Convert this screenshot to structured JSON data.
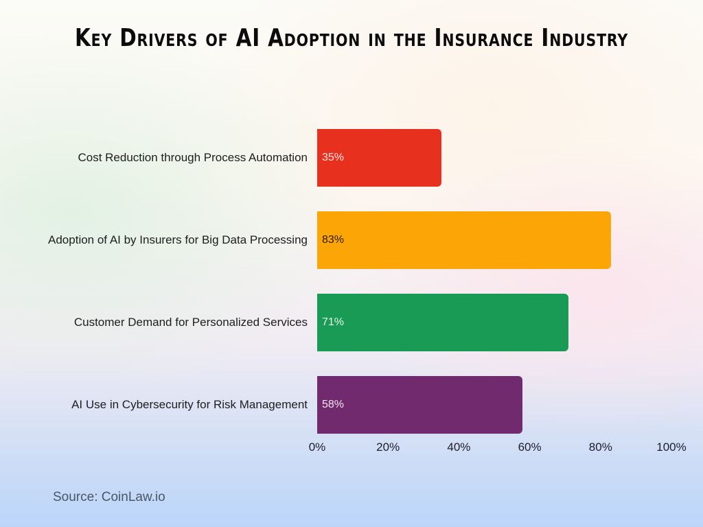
{
  "title": "Key Drivers of AI Adoption in the Insurance Industry",
  "source": "Source: CoinLaw.io",
  "bars": [
    {
      "label": "Cost Reduction through Process Automation",
      "value": 35,
      "display": "35%",
      "color": "#e8301f",
      "text_color": "#fde7e4"
    },
    {
      "label": "Adoption of AI by Insurers for Big Data Processing",
      "value": 83,
      "display": "83%",
      "color": "#fba506",
      "text_color": "#2a1a05"
    },
    {
      "label": "Customer Demand for Personalized Services",
      "value": 71,
      "display": "71%",
      "color": "#1a9b55",
      "text_color": "#e4f5ea"
    },
    {
      "label": "AI Use in Cybersecurity for Risk Management",
      "value": 58,
      "display": "58%",
      "color": "#722a6f",
      "text_color": "#f3e6f2"
    }
  ],
  "axis": {
    "ticks": [
      "0%",
      "20%",
      "40%",
      "60%",
      "80%",
      "100%"
    ]
  },
  "chart_data": {
    "type": "bar",
    "orientation": "horizontal",
    "title": "Key Drivers of AI Adoption in the Insurance Industry",
    "categories": [
      "Cost Reduction through Process Automation",
      "Adoption of AI by Insurers for Big Data Processing",
      "Customer Demand for Personalized Services",
      "AI Use in Cybersecurity for Risk Management"
    ],
    "values": [
      35,
      83,
      71,
      58
    ],
    "value_labels": [
      "35%",
      "83%",
      "71%",
      "58%"
    ],
    "colors": [
      "#e8301f",
      "#fba506",
      "#1a9b55",
      "#722a6f"
    ],
    "xlabel": "",
    "ylabel": "",
    "xlim": [
      0,
      100
    ],
    "x_ticks": [
      "0%",
      "20%",
      "40%",
      "60%",
      "80%",
      "100%"
    ],
    "grid": false,
    "legend": null,
    "annotations": [
      "Source: CoinLaw.io"
    ]
  }
}
